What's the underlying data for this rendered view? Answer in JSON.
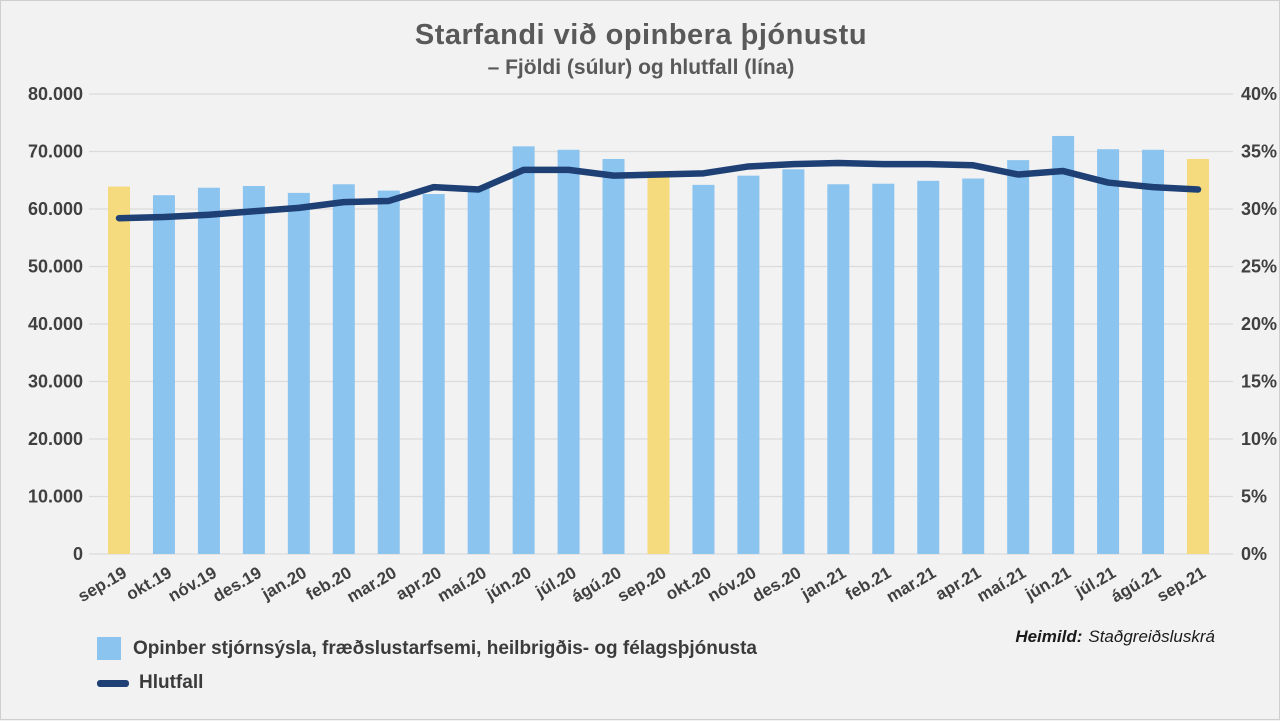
{
  "title": "Starfandi við opinbera þjónustu",
  "subtitle": "– Fjöldi (súlur) og hlutfall (lína)",
  "source": {
    "label": "Heimild:",
    "text": "Staðgreiðsluskrá"
  },
  "legend": [
    {
      "label": "Opinber stjórnsýsla, fræðslustarfsemi, heilbrigðis- og félagsþjónusta",
      "marker": "bar-swatch"
    },
    {
      "label": "Hlutfall",
      "marker": "line-swatch"
    }
  ],
  "colors": {
    "background": "#F2F2F2",
    "bar_blue": "#8CC4F0",
    "bar_yellow": "#F6DB7E",
    "line_navy": "#1E4075",
    "gridline": "#DBDBDB",
    "title_gray": "#595959",
    "axis_label_gray": "#404040"
  },
  "chart_data": {
    "type": "bar+line combo",
    "title": "Starfandi við opinbera þjónustu",
    "subtitle": "– Fjöldi (súlur) og hlutfall (lína)",
    "grid": "horizontal gridlines on",
    "legend_position": "bottom-left",
    "categories": [
      "sep.19",
      "okt.19",
      "nóv.19",
      "des.19",
      "jan.20",
      "feb.20",
      "mar.20",
      "apr.20",
      "maí.20",
      "jún.20",
      "júl.20",
      "ágú.20",
      "sep.20",
      "okt.20",
      "nóv.20",
      "des.20",
      "jan.21",
      "feb.21",
      "mar.21",
      "apr.21",
      "maí.21",
      "jún.21",
      "júl.21",
      "ágú.21",
      "sep.21"
    ],
    "series": [
      {
        "name": "Opinber stjórnsýsla, fræðslustarfsemi, heilbrigðis- og félagsþjónusta",
        "type": "bar",
        "axis": "left",
        "values": [
          63900,
          62400,
          63700,
          64000,
          62800,
          64300,
          63200,
          62600,
          63800,
          70900,
          70300,
          68700,
          66600,
          64200,
          65800,
          66900,
          64300,
          64400,
          64900,
          65300,
          68500,
          72700,
          70400,
          70300,
          68700
        ],
        "color": "#8CC4F0",
        "highlight_color": "#F6DB7E",
        "highlighted_indices": [
          0,
          12,
          24
        ]
      },
      {
        "name": "Hlutfall",
        "type": "line",
        "axis": "right",
        "values_percent": [
          29.2,
          29.3,
          29.5,
          29.8,
          30.1,
          30.6,
          30.7,
          31.9,
          31.7,
          33.4,
          33.4,
          32.9,
          33.0,
          33.1,
          33.7,
          33.9,
          34.0,
          33.9,
          33.9,
          33.8,
          33.0,
          33.3,
          32.3,
          31.9,
          31.7
        ],
        "color": "#1E4075"
      }
    ],
    "left_axis": {
      "min": 0,
      "max": 80000,
      "tick_step": 10000,
      "ticks": [
        "80.000",
        "70.000",
        "60.000",
        "50.000",
        "40.000",
        "30.000",
        "20.000",
        "10.000",
        "0"
      ]
    },
    "right_axis": {
      "min": 0,
      "max": 40,
      "tick_step": 5,
      "ticks": [
        "40%",
        "35%",
        "30%",
        "25%",
        "20%",
        "15%",
        "10%",
        "5%",
        "0%"
      ]
    }
  }
}
